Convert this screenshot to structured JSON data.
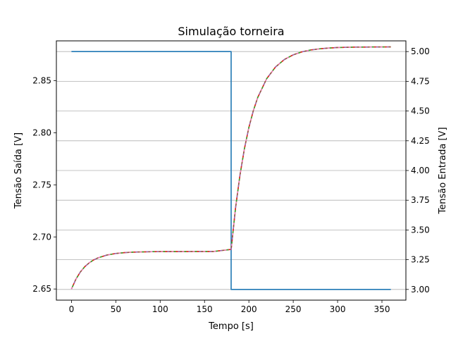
{
  "chart_data": {
    "type": "line",
    "title": "Simulação torneira",
    "xlabel": "Tempo [s]",
    "ylabel": "Tensão Saída [V]",
    "ylabel_right": "Tensão Entrada [V]",
    "xlim": [
      -17,
      377
    ],
    "ylim": [
      2.6393,
      2.8882
    ],
    "ylim_right": [
      2.91,
      5.09
    ],
    "x_ticks": [
      0,
      50,
      100,
      150,
      200,
      250,
      300,
      350
    ],
    "x_tick_labels": [
      "0",
      "50",
      "100",
      "150",
      "200",
      "250",
      "300",
      "350"
    ],
    "y_ticks": [
      2.65,
      2.7,
      2.75,
      2.8,
      2.85
    ],
    "y_tick_labels": [
      "2.65",
      "2.70",
      "2.75",
      "2.80",
      "2.85"
    ],
    "y_ticks_right": [
      3.0,
      3.25,
      3.5,
      3.75,
      4.0,
      4.25,
      4.5,
      4.75,
      5.0
    ],
    "y_tick_labels_right": [
      "3.00",
      "3.25",
      "3.50",
      "3.75",
      "4.00",
      "4.25",
      "4.50",
      "4.75",
      "5.00"
    ],
    "grid": "horizontal lines at right-axis ticks",
    "series": [
      {
        "axis": "right",
        "color": "#1f77b4",
        "x": [
          0,
          180,
          180,
          360
        ],
        "y": [
          5.0,
          5.0,
          3.0,
          3.0
        ]
      },
      {
        "axis": "left",
        "color": "#ff7f0e",
        "x": [
          0,
          5,
          10,
          15,
          20,
          25,
          30,
          40,
          50,
          60,
          70,
          80,
          90,
          100,
          120,
          140,
          160,
          180,
          185,
          190,
          195,
          200,
          205,
          210,
          220,
          230,
          240,
          250,
          260,
          270,
          280,
          290,
          300,
          320,
          340,
          360
        ],
        "y": [
          2.65,
          2.6594,
          2.6663,
          2.6714,
          2.6751,
          2.6779,
          2.6799,
          2.6826,
          2.6841,
          2.6849,
          2.6854,
          2.6856,
          2.6858,
          2.6859,
          2.6859,
          2.686,
          2.686,
          2.688,
          2.728,
          2.7596,
          2.7848,
          2.8051,
          2.8211,
          2.8339,
          2.8518,
          2.8631,
          2.8703,
          2.8748,
          2.8777,
          2.8795,
          2.8806,
          2.8813,
          2.8818,
          2.8822,
          2.8823,
          2.8824
        ]
      }
    ]
  }
}
